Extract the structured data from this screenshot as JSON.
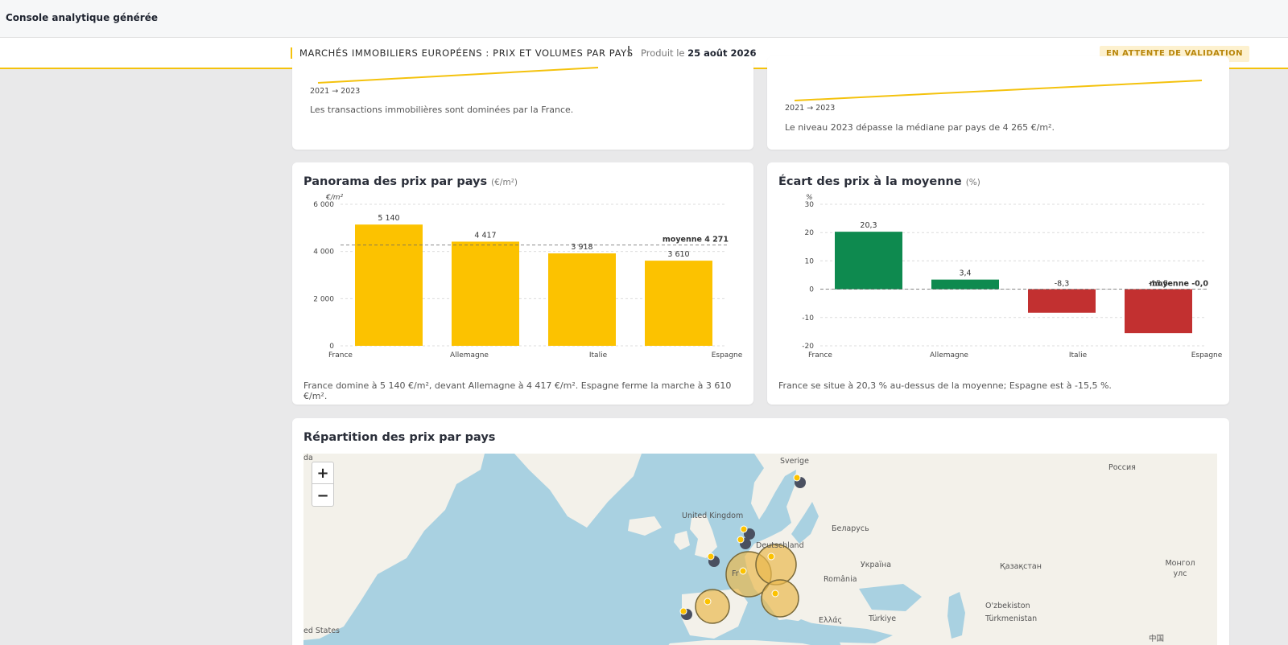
{
  "app": {
    "title": "Console analytique générée"
  },
  "report": {
    "title": "MARCHÉS IMMOBILIERS EUROPÉENS : PRIX ET VOLUMES PAR PAYS",
    "produced_prefix": "Produit le",
    "produced_date": "25 août 2026",
    "status_badge": "EN ATTENTE DE VALIDATION"
  },
  "kpi_left": {
    "range": "2021 → 2023",
    "note": "Les transactions immobilières sont dominées par la France."
  },
  "kpi_right": {
    "range": "2021 → 2023",
    "note": "Le niveau 2023 dépasse la médiane par pays de 4 265 €/m²."
  },
  "price_chart": {
    "title": "Panorama des prix par pays",
    "unit": "(€/m²)",
    "footer": "France domine à 5 140 €/m², devant Allemagne à 4 417 €/m². Espagne ferme la marche à 3 610 €/m²."
  },
  "gap_chart": {
    "title": "Écart des prix à la moyenne",
    "unit": "(%)",
    "footer": "France se situe à 20,3 % au-dessus de la moyenne; Espagne est à -15,5 %."
  },
  "map": {
    "title": "Répartition des prix par pays",
    "zoom_in": "+",
    "zoom_out": "−",
    "labels": [
      "Sverige",
      "Россия",
      "United Kingdom",
      "Беларусь",
      "Deutschland",
      "Україна",
      "Қазақстан",
      "Монгол улс",
      "România",
      "Fr",
      "O'zbekiston",
      "Türkiye",
      "Türkmenistan",
      "Ελλάς",
      "ed States",
      "da",
      "中国"
    ]
  },
  "chart_data": [
    {
      "type": "bar",
      "title": "Panorama des prix par pays",
      "ylabel": "€/m²",
      "categories": [
        "France",
        "Allemagne",
        "Italie",
        "Espagne"
      ],
      "values": [
        5140,
        4417,
        3918,
        3610
      ],
      "value_labels": [
        "5 140",
        "4 417",
        "3 918",
        "3 610"
      ],
      "ylim": [
        0,
        6000
      ],
      "yticks": [
        0,
        2000,
        4000,
        6000
      ],
      "ytick_labels": [
        "0",
        "2 000",
        "4 000",
        "6 000"
      ],
      "reference_line": {
        "value": 4271,
        "label": "moyenne 4 271"
      },
      "color": "#fcc200",
      "grid": true
    },
    {
      "type": "bar",
      "title": "Écart des prix à la moyenne",
      "ylabel": "%",
      "categories": [
        "France",
        "Allemagne",
        "Italie",
        "Espagne"
      ],
      "values": [
        20.3,
        3.4,
        -8.3,
        -15.5
      ],
      "value_labels": [
        "20,3",
        "3,4",
        "-8,3",
        "-15,5"
      ],
      "ylim": [
        -20,
        30
      ],
      "yticks": [
        -20,
        -10,
        0,
        10,
        20,
        30
      ],
      "ytick_labels": [
        "-20",
        "-10",
        "0",
        "10",
        "20",
        "30"
      ],
      "reference_line": {
        "value": 0,
        "label": "moyenne -0,0"
      },
      "positive_color": "#0e8a4f",
      "negative_color": "#c23030",
      "grid": true
    }
  ],
  "colors": {
    "accent": "#f4c20d",
    "bar": "#fcc200",
    "positive": "#0e8a4f",
    "negative": "#c23030",
    "map_water": "#a9d1e1",
    "map_land": "#f3f1ea"
  }
}
